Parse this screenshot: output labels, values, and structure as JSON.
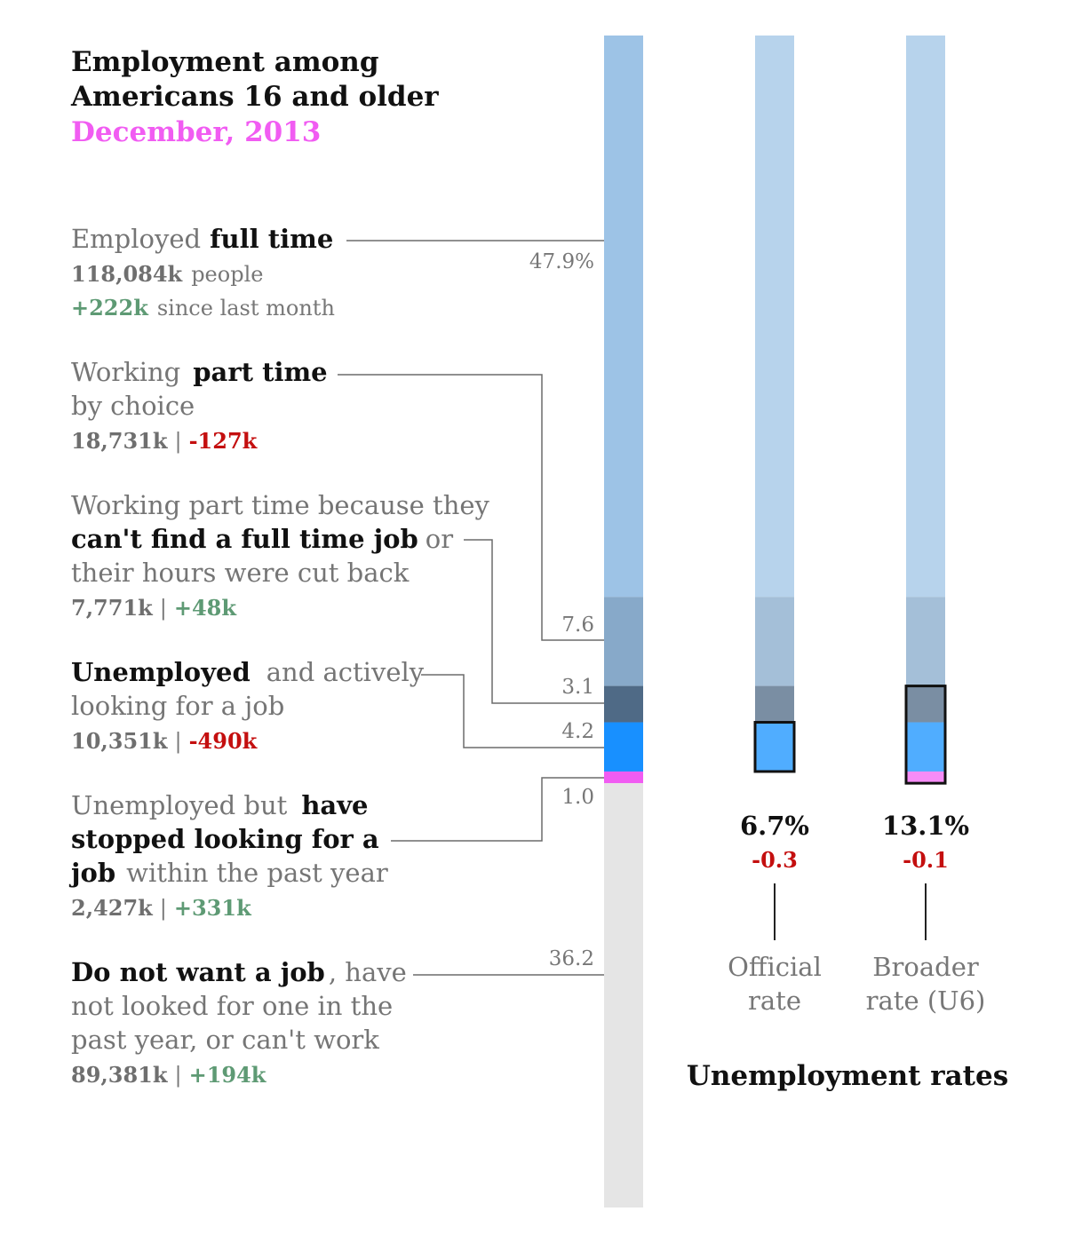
{
  "title_line1": "Employment among",
  "title_line2": "Americans 16 and older",
  "date": "December, 2013",
  "colors": {
    "full_time": "#9dc3e6",
    "part_time_choice": "#87a9c9",
    "part_time_involuntary": "#4f6a86",
    "unemployed": "#1890ff",
    "discouraged": "#f15cf2",
    "not_in_labor_force": "#e5e5e5",
    "positive_change": "#5e9a74",
    "negative_change": "#c40f0f",
    "title_accent": "#f15cf2"
  },
  "labels": {
    "full_time": {
      "pre": "Employed",
      "bold": "full time",
      "count": "118,084k",
      "count_suffix": "people",
      "change": "+222k",
      "change_suffix": "since last month"
    },
    "part_time_choice": {
      "pre": "Working",
      "bold": "part time",
      "line2": "by choice",
      "count": "18,731k",
      "sep": "|",
      "change": "-127k"
    },
    "part_time_involuntary": {
      "line1": "Working part time because they",
      "bold": "can't find a full time job",
      "post": "or",
      "line3": "their hours were cut back",
      "count": "7,771k",
      "sep": "|",
      "change": "+48k"
    },
    "unemployed": {
      "bold": "Unemployed",
      "post": "and actively",
      "line2": "looking for a job",
      "count": "10,351k",
      "sep": "|",
      "change": "-490k"
    },
    "discouraged": {
      "pre": "Unemployed but",
      "bold1": "have",
      "bold2": "stopped looking for a",
      "bold3": "job",
      "post": "within the past year",
      "count": "2,427k",
      "sep": "|",
      "change": "+331k"
    },
    "not_in_labor_force": {
      "bold": "Do not want a job",
      "post": ", have",
      "line2": "not looked for one in the",
      "line3": "past year, or can't work",
      "count": "89,381k",
      "sep": "|",
      "change": "+194k"
    }
  },
  "chart_data": [
    {
      "type": "bar",
      "stacked": true,
      "orientation": "vertical",
      "unit": "percent of population 16 and older",
      "categories": [
        "Employed full time",
        "Working part time by choice",
        "Working part time because they can't find a full time job or their hours were cut back",
        "Unemployed and actively looking for a job",
        "Unemployed but have stopped looking for a job within the past year",
        "Do not want a job, have not looked for one in the past year, or can't work"
      ],
      "values": [
        47.9,
        7.6,
        3.1,
        4.2,
        1.0,
        36.2
      ],
      "value_labels": [
        "47.9%",
        "7.6",
        "3.1",
        "4.2",
        "1.0",
        "36.2"
      ],
      "people_thousands": [
        118084,
        18731,
        7771,
        10351,
        2427,
        89381
      ],
      "change_since_last_month_thousands": [
        222,
        -127,
        48,
        -490,
        331,
        194
      ]
    },
    {
      "type": "bar",
      "title": "Unemployment rates",
      "categories": [
        "Official rate",
        "Broader rate (U6)"
      ],
      "values": [
        6.7,
        13.1
      ],
      "value_labels": [
        "6.7%",
        "13.1%"
      ],
      "changes": [
        -0.3,
        -0.1
      ],
      "change_labels": [
        "-0.3",
        "-0.1"
      ],
      "components": [
        [
          "Unemployed and actively looking for a job"
        ],
        [
          "Working part time because they can't find a full time job or their hours were cut back",
          "Unemployed and actively looking for a job",
          "Unemployed but have stopped looking for a job within the past year"
        ]
      ],
      "label_lines": [
        [
          "Official",
          "rate"
        ],
        [
          "Broader",
          "rate (U6)"
        ]
      ]
    }
  ]
}
